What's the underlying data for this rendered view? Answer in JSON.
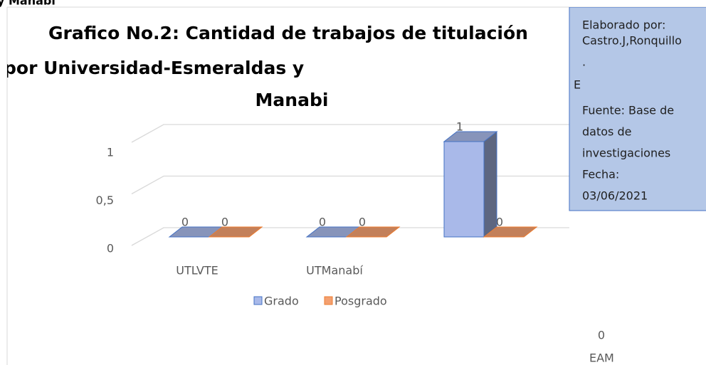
{
  "header_fragment": "y Manabí",
  "chart_data": {
    "type": "bar",
    "title": [
      "Grafico No.2: Cantidad de trabajos de titulación",
      "por Universidad-Esmeraldas y",
      "Manabi"
    ],
    "categories": [
      "UTLVTE",
      "UTManabí",
      null
    ],
    "series": [
      {
        "name": "Grado",
        "color": "#a9b9e9",
        "values": [
          0,
          0,
          1
        ]
      },
      {
        "name": "Posgrado",
        "color": "#f4a070",
        "values": [
          0,
          0,
          0
        ]
      }
    ],
    "ylim": [
      0,
      1
    ],
    "yticks": [
      0,
      {
        "value": 0.5,
        "label": "0,5"
      },
      1
    ],
    "grid": true,
    "legend": "bottom",
    "annotations": {
      "text_box": [
        "Elaborado por:",
        "Castro.J,Ronquillo",
        ".",
        "E",
        "Fuente: Base de",
        "datos de",
        "investigaciones",
        "Fecha:",
        "03/06/2021"
      ],
      "stray": [
        "0",
        "EAM"
      ]
    }
  }
}
